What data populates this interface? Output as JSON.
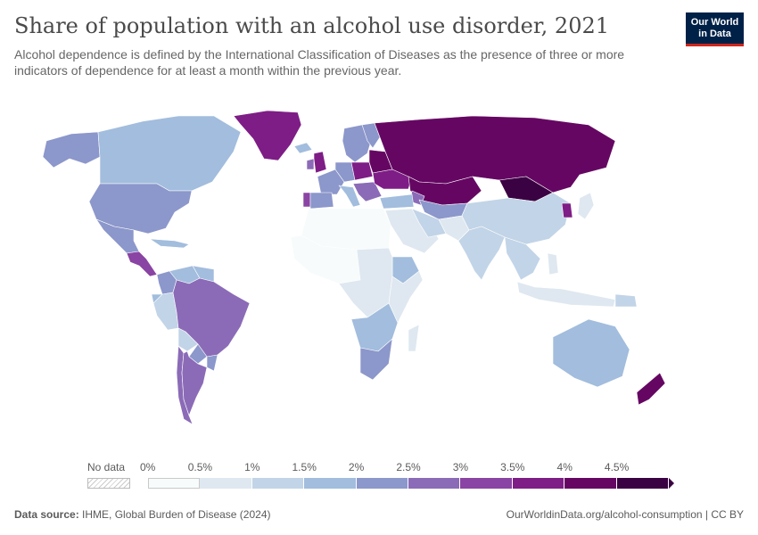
{
  "title": "Share of population with an alcohol use disorder, 2021",
  "subtitle": "Alcohol dependence is defined by the International Classification of Diseases as the presence of three or more indicators of dependence for at least a month within the previous year.",
  "logo": {
    "line1": "Our World",
    "line2": "in Data",
    "bg": "#002147",
    "accent": "#ce261e"
  },
  "legend": {
    "no_data_label": "No data",
    "ticks": [
      "0%",
      "0.5%",
      "1%",
      "1.5%",
      "2%",
      "2.5%",
      "3%",
      "3.5%",
      "4%",
      "4.5%"
    ],
    "colors": [
      "#f7fbfb",
      "#dfe8f0",
      "#c2d4e7",
      "#a2bddd",
      "#8c97cb",
      "#8b6bb7",
      "#8a44a3",
      "#7e1d86",
      "#650762",
      "#3a0242"
    ]
  },
  "map_data": {
    "type": "choropleth",
    "metric": "Share of population with an alcohol use disorder",
    "year": 2021,
    "unit": "%",
    "regions": [
      {
        "name": "Greenland",
        "bin": 7
      },
      {
        "name": "Alaska",
        "bin": 4
      },
      {
        "name": "Canada",
        "bin": 3
      },
      {
        "name": "United States",
        "bin": 4
      },
      {
        "name": "Mexico",
        "bin": 4
      },
      {
        "name": "Central America",
        "bin": 6
      },
      {
        "name": "Caribbean",
        "bin": 3
      },
      {
        "name": "Colombia",
        "bin": 4
      },
      {
        "name": "Venezuela",
        "bin": 3
      },
      {
        "name": "Guianas",
        "bin": 3
      },
      {
        "name": "Ecuador",
        "bin": 3
      },
      {
        "name": "Peru",
        "bin": 2
      },
      {
        "name": "Brazil",
        "bin": 5
      },
      {
        "name": "Bolivia",
        "bin": 2
      },
      {
        "name": "Paraguay",
        "bin": 4
      },
      {
        "name": "Chile",
        "bin": 5
      },
      {
        "name": "Argentina",
        "bin": 5
      },
      {
        "name": "Uruguay",
        "bin": 4
      },
      {
        "name": "Iceland",
        "bin": 3
      },
      {
        "name": "United Kingdom",
        "bin": 7
      },
      {
        "name": "Ireland",
        "bin": 5
      },
      {
        "name": "Portugal",
        "bin": 6
      },
      {
        "name": "Spain",
        "bin": 4
      },
      {
        "name": "France",
        "bin": 4
      },
      {
        "name": "Germany",
        "bin": 4
      },
      {
        "name": "Poland",
        "bin": 7
      },
      {
        "name": "Italy",
        "bin": 3
      },
      {
        "name": "Scandinavia",
        "bin": 4
      },
      {
        "name": "Finland",
        "bin": 4
      },
      {
        "name": "Baltics & Belarus",
        "bin": 8
      },
      {
        "name": "Ukraine",
        "bin": 7
      },
      {
        "name": "Balkans",
        "bin": 5
      },
      {
        "name": "Russia",
        "bin": 8
      },
      {
        "name": "Kazakhstan",
        "bin": 8
      },
      {
        "name": "Mongolia",
        "bin": 9
      },
      {
        "name": "Caucasus",
        "bin": 5
      },
      {
        "name": "Central Asia",
        "bin": 4
      },
      {
        "name": "Turkey",
        "bin": 3
      },
      {
        "name": "Middle East",
        "bin": 1
      },
      {
        "name": "Iran",
        "bin": 2
      },
      {
        "name": "Afghanistan & Pakistan",
        "bin": 1
      },
      {
        "name": "North Africa",
        "bin": 0
      },
      {
        "name": "West Africa",
        "bin": 0
      },
      {
        "name": "Central Africa",
        "bin": 1
      },
      {
        "name": "Ethiopia",
        "bin": 3
      },
      {
        "name": "East Africa",
        "bin": 1
      },
      {
        "name": "Southern Africa",
        "bin": 3
      },
      {
        "name": "South Africa",
        "bin": 4
      },
      {
        "name": "Madagascar",
        "bin": 1
      },
      {
        "name": "India",
        "bin": 2
      },
      {
        "name": "China",
        "bin": 2
      },
      {
        "name": "Korea",
        "bin": 7
      },
      {
        "name": "Japan",
        "bin": 1
      },
      {
        "name": "Southeast Asia",
        "bin": 2
      },
      {
        "name": "Indonesia",
        "bin": 1
      },
      {
        "name": "Philippines",
        "bin": 1
      },
      {
        "name": "Papua New Guinea",
        "bin": 2
      },
      {
        "name": "Australia",
        "bin": 3
      },
      {
        "name": "New Zealand",
        "bin": 8
      }
    ]
  },
  "footer": {
    "source_label": "Data source:",
    "source_text": "IHME, Global Burden of Disease (2024)",
    "right_text": "OurWorldinData.org/alcohol-consumption | CC BY"
  }
}
